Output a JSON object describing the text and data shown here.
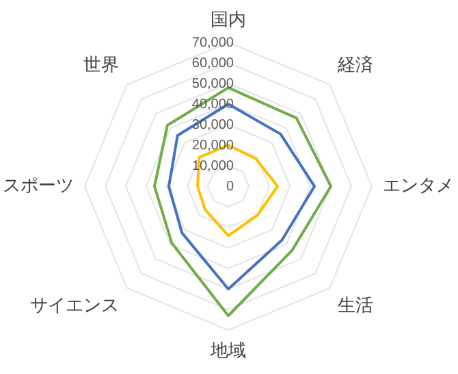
{
  "chart_data": {
    "type": "radar",
    "categories": [
      "国内",
      "経済",
      "エンタメ",
      "生活",
      "地域",
      "サイエンス",
      "スポーツ",
      "世界"
    ],
    "series": [
      {
        "color": "#70ad47",
        "values": [
          48000,
          47000,
          50000,
          44000,
          63000,
          39000,
          36000,
          42000
        ]
      },
      {
        "color": "#4472c4",
        "values": [
          40000,
          36000,
          42000,
          37000,
          50000,
          32000,
          29000,
          35000
        ]
      },
      {
        "color": "#ffc000",
        "values": [
          20000,
          19000,
          24000,
          20000,
          24000,
          16000,
          15000,
          20000
        ]
      }
    ],
    "ylim": [
      0,
      70000
    ],
    "yticks": [
      {
        "value": 0,
        "label": "0"
      },
      {
        "value": 10000,
        "label": "10,000"
      },
      {
        "value": 20000,
        "label": "20,000"
      },
      {
        "value": 30000,
        "label": "30,000"
      },
      {
        "value": 40000,
        "label": "40,000"
      },
      {
        "value": 50000,
        "label": "50,000"
      },
      {
        "value": 60000,
        "label": "60,000"
      },
      {
        "value": 70000,
        "label": "70,000"
      }
    ],
    "grid": true,
    "legend": false,
    "marker": "none",
    "line_style": "solid"
  }
}
